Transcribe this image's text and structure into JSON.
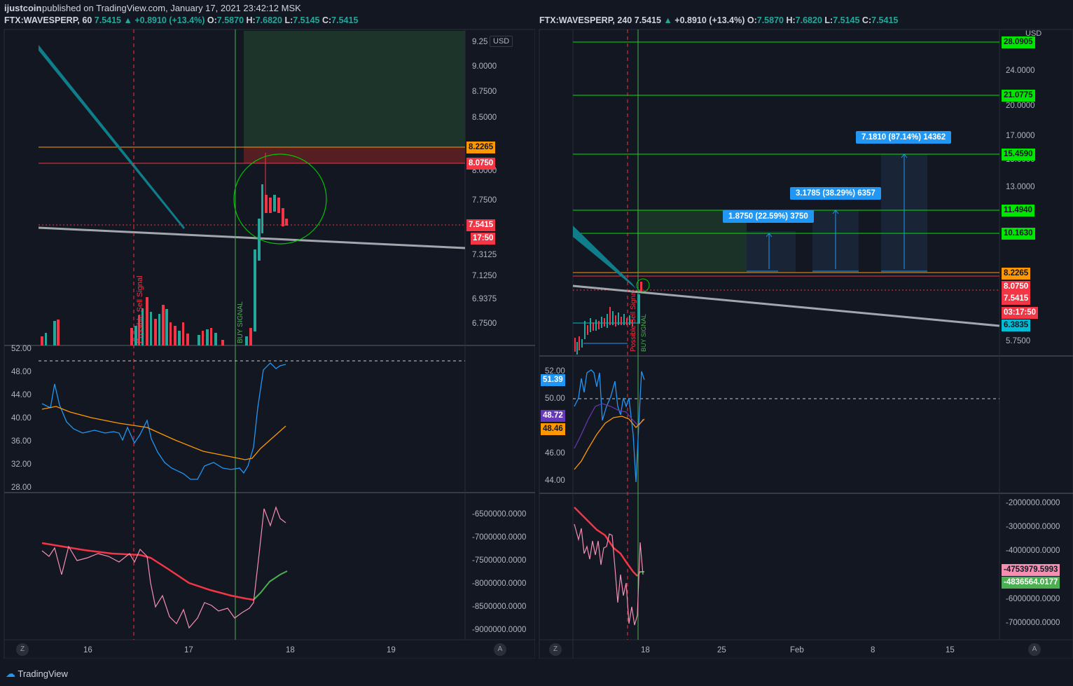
{
  "header": {
    "author": "ijustcoin",
    "published": "published on TradingView.com, January 17, 2021 23:42:12 MSK"
  },
  "left": {
    "legend": {
      "symbol": "FTX:WAVESPERP, 60",
      "price": "7.5415",
      "change": "+0.8910 (+13.4%)",
      "o_label": "O:",
      "o": "7.5870",
      "h_label": "H:",
      "h": "7.6820",
      "l_label": "L:",
      "l": "7.5145",
      "c_label": "C:",
      "c": "7.5415"
    },
    "currency": "USD",
    "price_ticks": [
      "9.25",
      "9.0000",
      "8.7500",
      "8.5000",
      "8.0000",
      "7.7500",
      "7.3125",
      "7.1250",
      "6.9375",
      "6.7500"
    ],
    "price_badges": [
      {
        "text": "8.2265",
        "color": "#ff9800"
      },
      {
        "text": "8.0750",
        "color": "#f23645"
      },
      {
        "text": "7.5415",
        "color": "#f23645"
      },
      {
        "text": "17:50",
        "color": "#f23645"
      }
    ],
    "rsi_ticks": [
      "52.00",
      "48.00",
      "44.00",
      "40.00",
      "36.00",
      "32.00",
      "28.00"
    ],
    "vol_ticks": [
      "-6500000.0000",
      "-7000000.0000",
      "-7500000.0000",
      "-8000000.0000",
      "-8500000.0000",
      "-9000000.0000"
    ],
    "time_ticks": [
      "16",
      "17",
      "18",
      "19"
    ],
    "sell_signal": "Possible Sell Signal",
    "buy_signal": "BUY SIGNAL"
  },
  "right": {
    "legend": {
      "symbol": "FTX:WAVESPERP, 240",
      "price": "7.5415",
      "change": "+0.8910 (+13.4%)",
      "o_label": "O:",
      "o": "7.5870",
      "h_label": "H:",
      "h": "7.6820",
      "l_label": "L:",
      "l": "7.5145",
      "c_label": "C:",
      "c": "7.5415"
    },
    "currency": "USD",
    "price_ticks": [
      "24.0000",
      "20.0000",
      "17.0000",
      "15.0000",
      "13.0000",
      "5.7500"
    ],
    "price_badges": [
      {
        "text": "28.0905",
        "color": "#00e600"
      },
      {
        "text": "21.0775",
        "color": "#00e600"
      },
      {
        "text": "15.4590",
        "color": "#00e600"
      },
      {
        "text": "11.4940",
        "color": "#00e600"
      },
      {
        "text": "10.1630",
        "color": "#00e600"
      },
      {
        "text": "8.2265",
        "color": "#ff9800"
      },
      {
        "text": "8.0750",
        "color": "#f23645"
      },
      {
        "text": "7.5415",
        "color": "#f23645"
      },
      {
        "text": "03:17:50",
        "color": "#f23645"
      },
      {
        "text": "6.3835",
        "color": "#00bcd4"
      }
    ],
    "rsi_ticks": [
      "52.00",
      "50.00",
      "46.00",
      "44.00"
    ],
    "rsi_badges": [
      {
        "text": "51.39",
        "color": "#2196f3"
      },
      {
        "text": "48.72",
        "color": "#673ab7"
      },
      {
        "text": "48.46",
        "color": "#ff9800"
      }
    ],
    "vol_ticks": [
      "-2000000.0000",
      "-3000000.0000",
      "-4000000.0000",
      "-6000000.0000",
      "-7000000.0000"
    ],
    "vol_badges": [
      {
        "text": "-4753979.5993",
        "color": "#f48fb1"
      },
      {
        "text": "-4836564.0177",
        "color": "#4caf50"
      }
    ],
    "time_ticks": [
      "18",
      "25",
      "Feb",
      "8",
      "15"
    ],
    "targets": [
      {
        "text": "1.8750 (22.59%) 3750"
      },
      {
        "text": "3.1785 (38.29%) 6357"
      },
      {
        "text": "7.1810 (87.14%) 14362"
      }
    ],
    "sell_signal": "Possible Sell Signal",
    "buy_signal": "BUY SIGNAL"
  },
  "footer": {
    "brand": "TradingView",
    "zoom_left": "Z",
    "auto_left": "A",
    "zoom_right": "Z",
    "auto_right": "A"
  }
}
